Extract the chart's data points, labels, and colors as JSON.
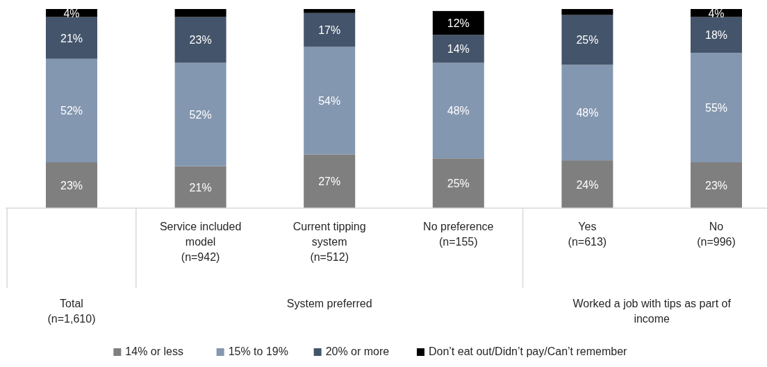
{
  "chart_data": {
    "type": "bar",
    "stacked": true,
    "categories": [
      null,
      "Service included model (n=942)",
      "Current tipping system (n=512)",
      "No preference (n=155)",
      "Yes (n=613)",
      "No (n=996)"
    ],
    "series": [
      {
        "name": "14% or less",
        "color": "#7f7f7f",
        "values": [
          23,
          21,
          27,
          25,
          24,
          23
        ],
        "value_labels": [
          "23%",
          "21%",
          "27%",
          "25%",
          "24%",
          "23%"
        ]
      },
      {
        "name": "15% to 19%",
        "color": "#8497b0",
        "values": [
          52,
          52,
          54,
          48,
          48,
          55
        ],
        "value_labels": [
          "52%",
          "52%",
          "54%",
          "48%",
          "48%",
          "55%"
        ]
      },
      {
        "name": "20% or more",
        "color": "#44546a",
        "values": [
          21,
          23,
          17,
          14,
          25,
          18
        ],
        "value_labels": [
          "21%",
          "23%",
          "17%",
          "14%",
          "25%",
          "18%"
        ]
      },
      {
        "name": "Don’t eat out/Didn’t pay/Can’t remember",
        "color": "#000000",
        "values": [
          4,
          4,
          2,
          12,
          3,
          4
        ],
        "value_labels": [
          "4%",
          null,
          null,
          "12%",
          null,
          "4%"
        ]
      }
    ],
    "annotations": [
      "Total (n=1,610)",
      "System preferred",
      "Worked a job with tips as part of income"
    ],
    "legend": "bottom"
  }
}
